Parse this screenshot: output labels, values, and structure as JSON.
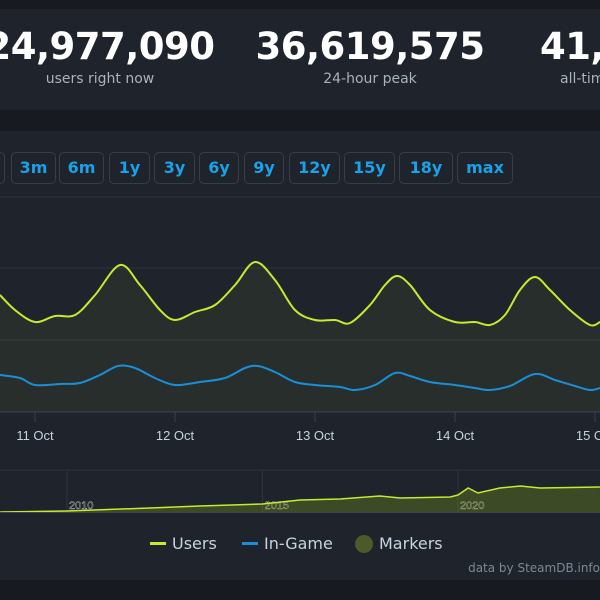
{
  "stats": [
    {
      "value": "24,977,090",
      "label": "users right now"
    },
    {
      "value": "36,619,575",
      "label": "24-hour peak"
    },
    {
      "value": "41,6",
      "label": "all-tim"
    }
  ],
  "range_buttons": [
    "3m",
    "6m",
    "1y",
    "3y",
    "6y",
    "9y",
    "12y",
    "15y",
    "18y",
    "max"
  ],
  "legend": {
    "users": "Users",
    "ingame": "In-Game",
    "markers": "Markers"
  },
  "credit": "data by SteamDB.info",
  "colors": {
    "users": "#c3ec2c",
    "ingame": "#1a8fd6",
    "markers": "#4a5a2a"
  },
  "chart_data": {
    "type": "line",
    "xlabel": "",
    "ylabel": "",
    "x_tick_labels": [
      "11 Oct",
      "12 Oct",
      "13 Oct",
      "14 Oct",
      "15 Oct"
    ],
    "x_ticks_day": [
      11,
      12,
      13,
      14,
      15
    ],
    "y_unit": "million users (approx.)",
    "grid": true,
    "series": [
      {
        "name": "Users",
        "day": [
          10.75,
          10.857,
          11,
          11.143,
          11.286,
          11.429,
          11.607,
          11.75,
          11.893,
          12,
          12.143,
          12.286,
          12.429,
          12.571,
          12.714,
          12.857,
          13,
          13.143,
          13.25,
          13.393,
          13.5,
          13.586,
          13.679,
          13.821,
          14,
          14.143,
          14.25,
          14.357,
          14.464,
          14.571,
          14.679,
          14.821,
          14.964,
          15.036
        ],
        "values": [
          29.25,
          25.5,
          22.5,
          24,
          24.25,
          29.25,
          36.75,
          31.75,
          25.5,
          23,
          25,
          26.75,
          31.75,
          37.5,
          33,
          25.5,
          23,
          23,
          22.25,
          26.75,
          31.75,
          34,
          31.75,
          25.5,
          22.5,
          22.5,
          21.75,
          24.25,
          30.5,
          33.75,
          30.5,
          25.5,
          21.75,
          22.5
        ]
      },
      {
        "name": "In-Game",
        "day": [
          10.75,
          10.893,
          11,
          11.179,
          11.321,
          11.464,
          11.593,
          11.714,
          11.857,
          12,
          12.179,
          12.357,
          12.5,
          12.593,
          12.714,
          12.857,
          13,
          13.179,
          13.286,
          13.429,
          13.571,
          13.679,
          13.821,
          14,
          14.143,
          14.25,
          14.393,
          14.571,
          14.714,
          14.857,
          14.964,
          15.036
        ],
        "values": [
          9.25,
          8.5,
          6.75,
          7,
          7.25,
          9.25,
          11.5,
          11,
          8.5,
          6.75,
          7.5,
          8.5,
          11,
          11.5,
          10,
          7.5,
          6.75,
          6.25,
          5.5,
          6.75,
          9.75,
          9,
          7.5,
          6.75,
          6,
          5.5,
          6.5,
          9.5,
          8,
          6.5,
          5.5,
          6
        ]
      }
    ],
    "navigator": {
      "x_tick_labels": [
        "2010",
        "2015",
        "2020"
      ],
      "x_ticks_year": [
        2010,
        2015,
        2020
      ],
      "year": [
        2008.29,
        2010,
        2012.12,
        2013.4,
        2015,
        2015.96,
        2016.98,
        2018,
        2018.52,
        2019.8,
        2020,
        2020.26,
        2020.51,
        2021.07,
        2021.59,
        2022.1,
        2023.63
      ],
      "values": [
        0,
        1,
        4,
        6,
        8,
        12,
        13,
        16,
        14,
        15,
        17,
        24,
        19,
        24,
        26,
        24,
        25
      ]
    }
  }
}
